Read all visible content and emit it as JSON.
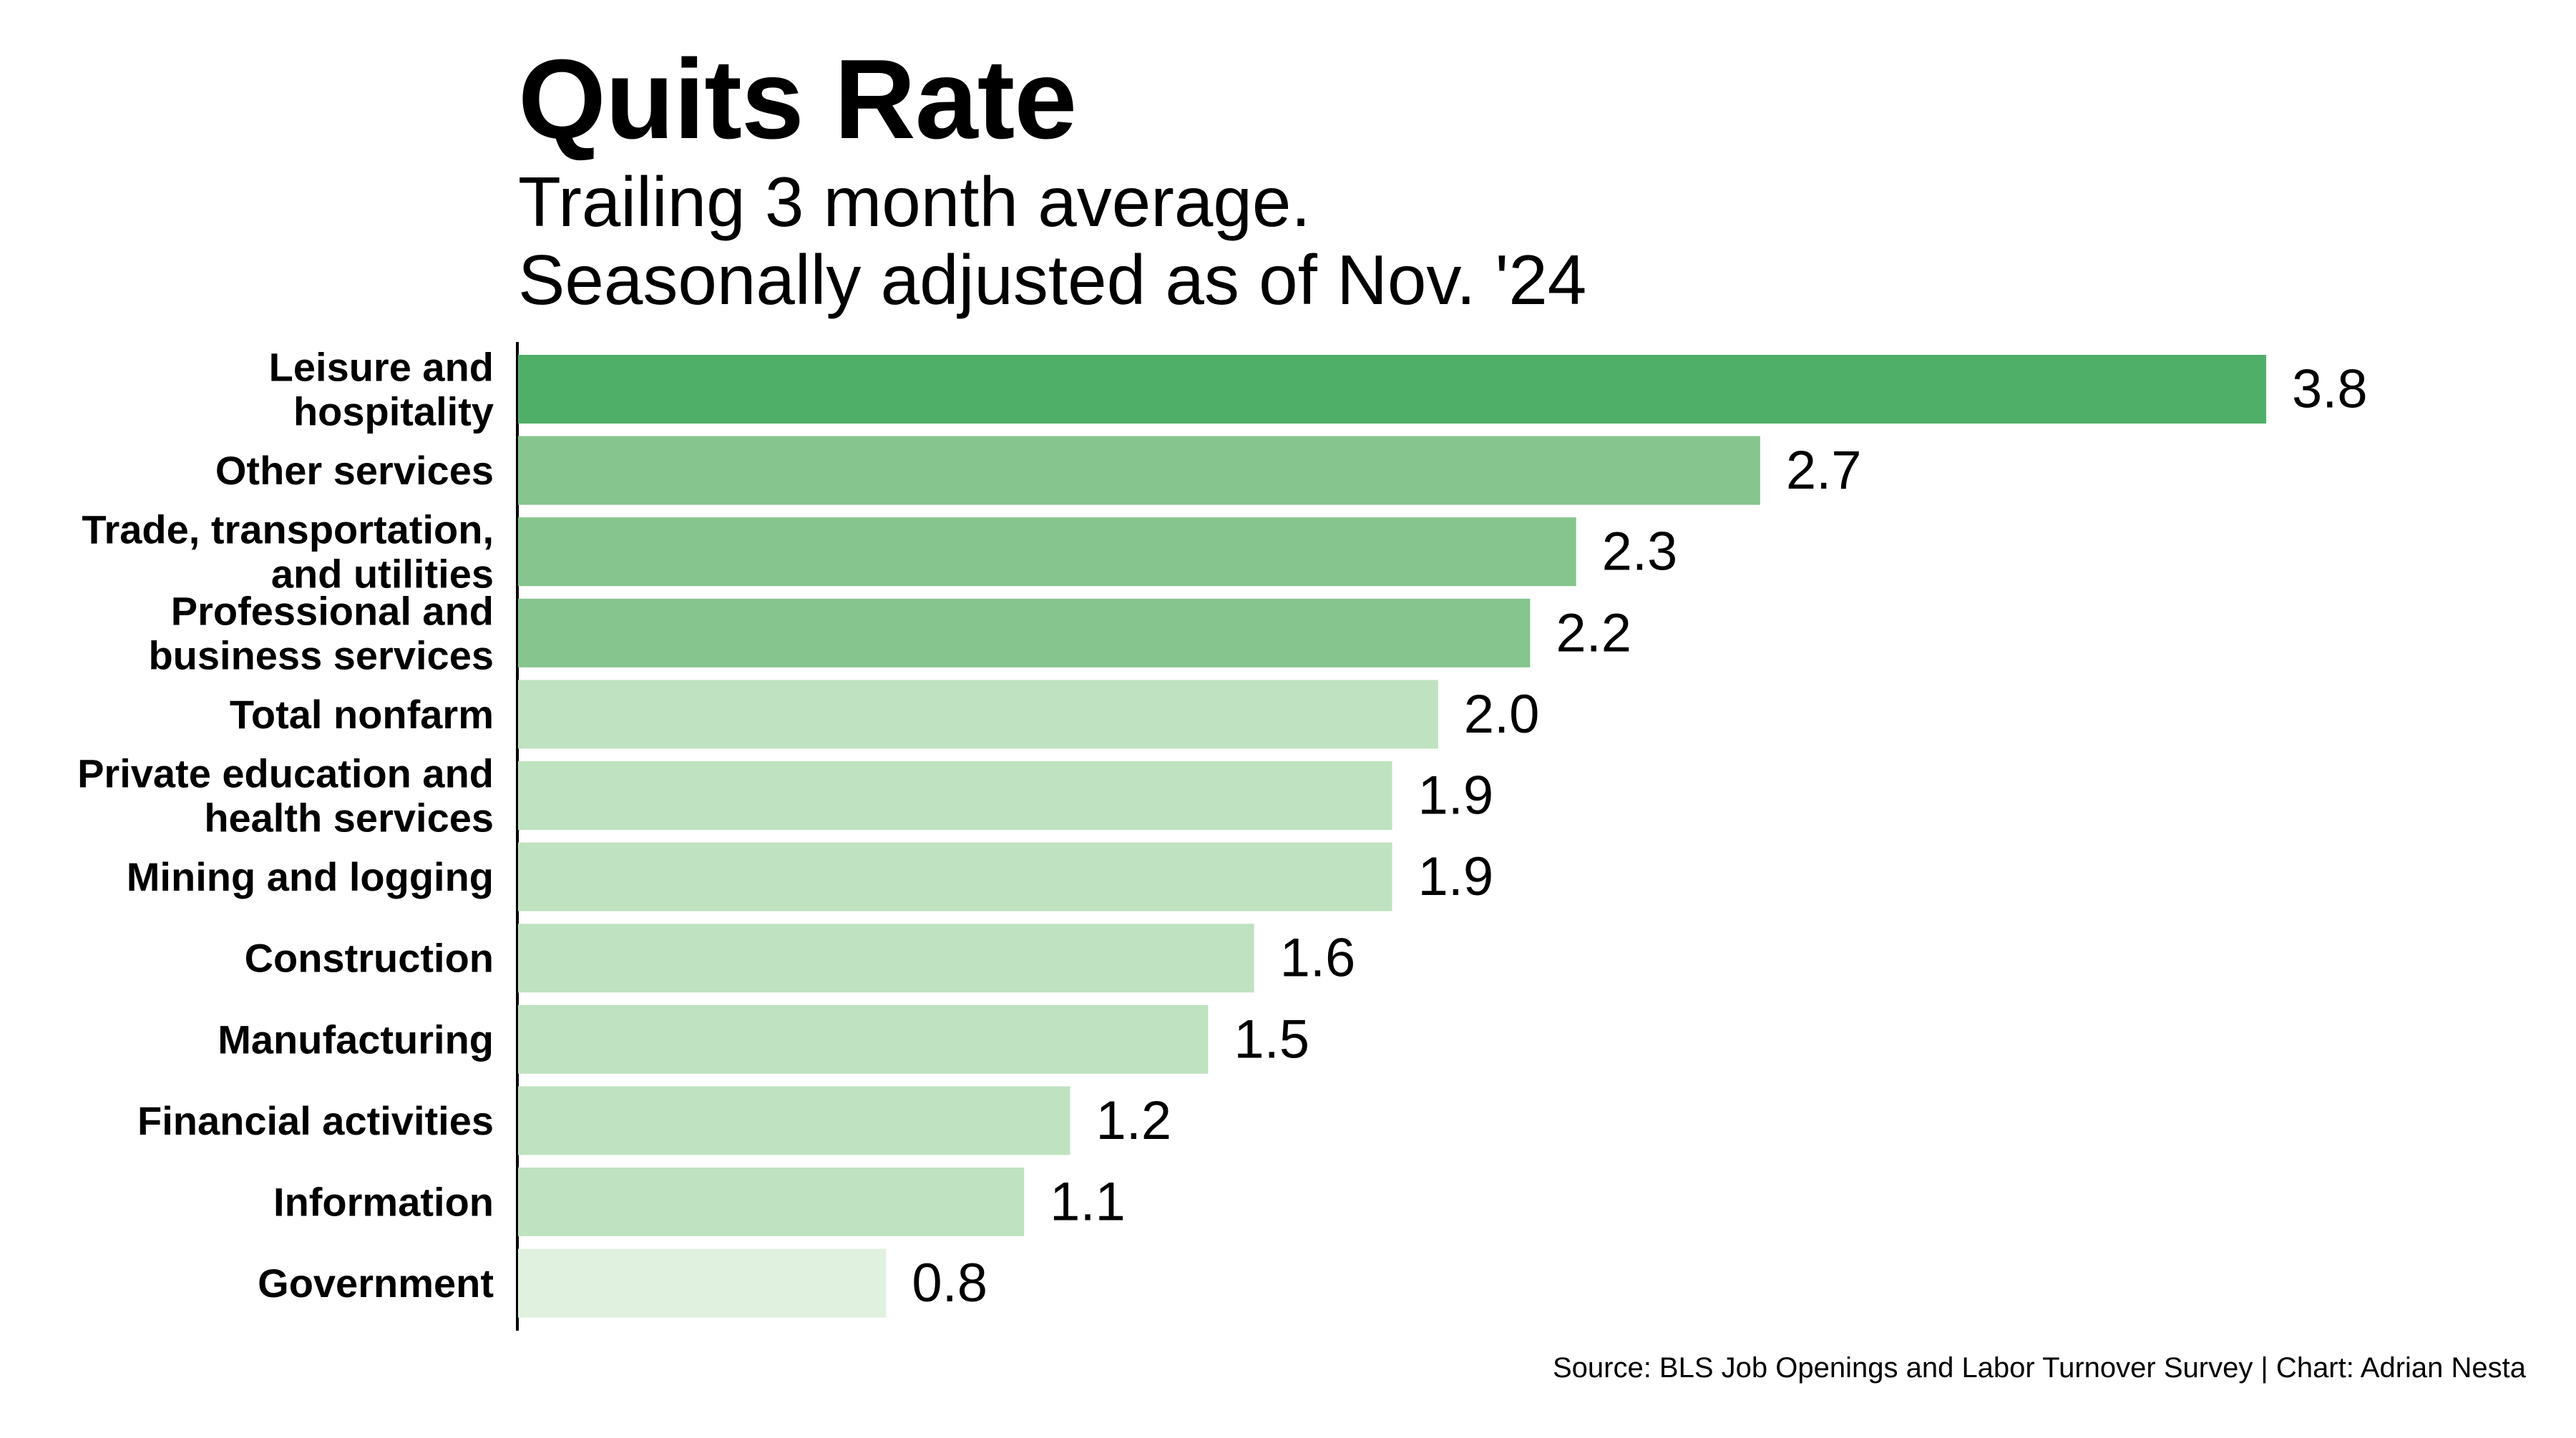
{
  "title": "Quits Rate",
  "subtitle_lines": [
    "Trailing 3 month average.",
    "Seasonally adjusted as of Nov. '24"
  ],
  "source": "Source: BLS Job Openings and Labor Turnover Survey | Chart: Adrian Nesta",
  "chart_data": {
    "type": "bar",
    "orientation": "horizontal",
    "title": "Quits Rate",
    "subtitle": "Trailing 3 month average. Seasonally adjusted as of Nov. '24",
    "categories": [
      [
        "Leisure and",
        "hospitality"
      ],
      [
        "Other services"
      ],
      [
        "Trade, transportation,",
        "and utilities"
      ],
      [
        "Professional and",
        "business services"
      ],
      [
        "Total nonfarm"
      ],
      [
        "Private education and",
        "health services"
      ],
      [
        "Mining and logging"
      ],
      [
        "Construction"
      ],
      [
        "Manufacturing"
      ],
      [
        "Financial activities"
      ],
      [
        "Information"
      ],
      [
        "Government"
      ]
    ],
    "values": [
      3.8,
      2.7,
      2.3,
      2.2,
      2.0,
      1.9,
      1.9,
      1.6,
      1.5,
      1.2,
      1.1,
      0.8
    ],
    "value_labels": [
      "3.8",
      "2.7",
      "2.3",
      "2.2",
      "2.0",
      "1.9",
      "1.9",
      "1.6",
      "1.5",
      "1.2",
      "1.1",
      "0.8"
    ],
    "bar_colors": [
      "#4fae67",
      "#86c58e",
      "#86c58e",
      "#86c58e",
      "#bfe2c0",
      "#bfe2c0",
      "#bfe2c0",
      "#bfe2c0",
      "#bfe2c0",
      "#bfe2c0",
      "#bfe2c0",
      "#e0f1df"
    ],
    "xlim": [
      0,
      3.8
    ],
    "xlabel": "",
    "ylabel": "",
    "grid": false,
    "legend": "none"
  }
}
